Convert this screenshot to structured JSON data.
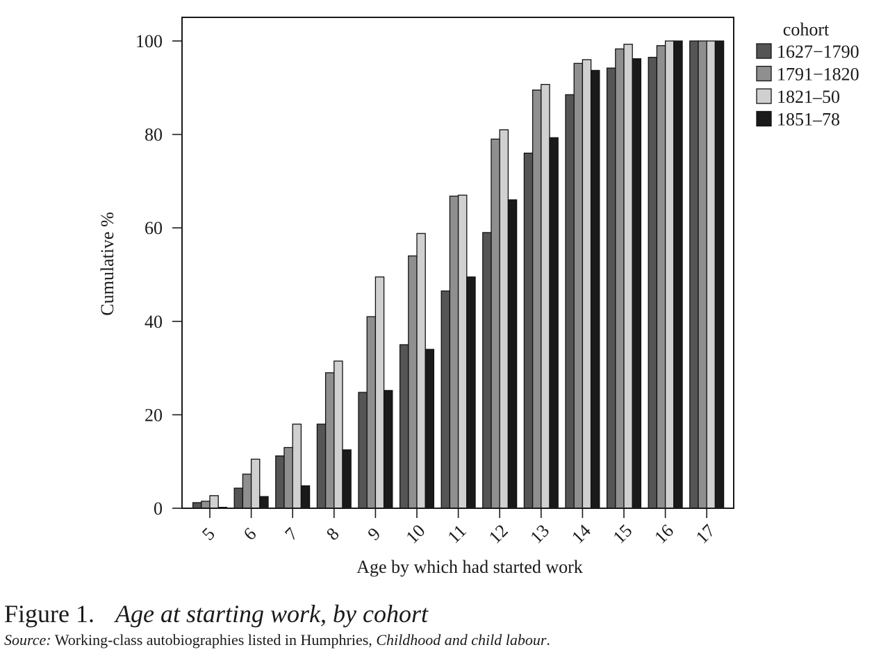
{
  "chart_data": {
    "type": "bar",
    "xlabel": "Age by which had started work",
    "ylabel": "Cumulative %",
    "ylim": [
      0,
      100
    ],
    "yticks": [
      0,
      20,
      40,
      60,
      80,
      100
    ],
    "grid": false,
    "legend_title": "cohort",
    "legend_position": "outside top-right",
    "categories": [
      "5",
      "6",
      "7",
      "8",
      "9",
      "10",
      "11",
      "12",
      "13",
      "14",
      "15",
      "16",
      "17"
    ],
    "series": [
      {
        "name": "1627−1790",
        "color": "#555555",
        "values": [
          1.2,
          4.3,
          11.2,
          18.0,
          24.8,
          35.0,
          46.5,
          59.0,
          76.0,
          88.5,
          94.2,
          96.5,
          100
        ]
      },
      {
        "name": "1791−1820",
        "color": "#8f8f8f",
        "values": [
          1.5,
          7.3,
          13.0,
          29.0,
          41.0,
          54.0,
          66.8,
          79.0,
          89.5,
          95.2,
          98.3,
          99.0,
          100
        ]
      },
      {
        "name": "1821–50",
        "color": "#d0d0d0",
        "values": [
          2.7,
          10.5,
          18.0,
          31.5,
          49.5,
          58.8,
          67.0,
          81.0,
          90.7,
          96.0,
          99.3,
          100,
          100
        ]
      },
      {
        "name": "1851–78",
        "color": "#1a1a1a",
        "values": [
          0.2,
          2.5,
          4.8,
          12.5,
          25.2,
          34.0,
          49.5,
          66.0,
          79.3,
          93.7,
          96.2,
          100,
          100
        ]
      }
    ]
  },
  "caption": {
    "label": "Figure 1.",
    "title": "Age at starting work, by cohort"
  },
  "source": {
    "prefix": "Source:",
    "text": "Working-class autobiographies listed in Humphries,",
    "book": "Childhood and child labour",
    "end": "."
  }
}
